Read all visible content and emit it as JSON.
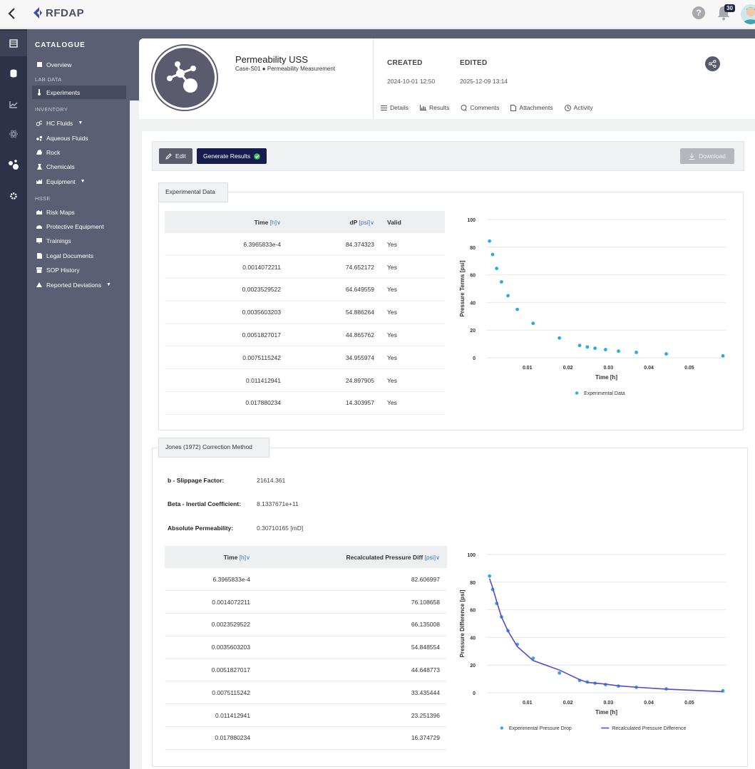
{
  "app": {
    "name": "RFDAP",
    "notifications_count": "30"
  },
  "icons": {
    "back": "chevron-left-icon",
    "help": "question-circle-icon",
    "bell": "bell-icon",
    "share": "share-icon"
  },
  "colors": {
    "sidebar": "#5b5f74",
    "rail": "#2d3249",
    "primary": "#171c4f",
    "series": "#31a8e6",
    "line": "#5a48c9"
  },
  "sidebar": {
    "title": "CATALOGUE",
    "overview": "Overview",
    "lab_data_label": "LAB DATA",
    "experiments": "Experiments",
    "inventory_label": "INVENTORY",
    "hc_fluids": "HC Fluids",
    "aqueous_fluids": "Aqueous Fluids",
    "rock": "Rock",
    "chemicals": "Chemicals",
    "equipment": "Equipment",
    "hsse_label": "HSSE",
    "risk_maps": "Risk Maps",
    "protective_equipment": "Protective Equipment",
    "trainings": "Trainings",
    "legal_documents": "Legal Documents",
    "sop_history": "SOP History",
    "reported_deviations": "Reported Deviations"
  },
  "header": {
    "title": "Permeability USS",
    "subtitle": "Case-S01 ● Permeability Measurement",
    "created_label": "CREATED",
    "created_value": "2024-10-01 12:50",
    "edited_label": "EDITED",
    "edited_value": "2025-12-09 13:14",
    "tabs": {
      "details": "Details",
      "results": "Results",
      "comments": "Comments",
      "attachments": "Attachments",
      "activity": "Activity"
    }
  },
  "toolbar": {
    "edit": "Edit",
    "generate": "Generate Results",
    "download": "Download"
  },
  "experimental": {
    "tab_label": "Experimental Data",
    "col_time": "Time",
    "col_time_unit": "[h]",
    "col_dp": "dP",
    "col_dp_unit": "[psi]",
    "col_valid": "Valid",
    "rows": [
      {
        "time": "6.3965833e-4",
        "dp": "84.374323",
        "valid": "Yes"
      },
      {
        "time": "0.0014072211",
        "dp": "74.652172",
        "valid": "Yes"
      },
      {
        "time": "0.0023529522",
        "dp": "64.649559",
        "valid": "Yes"
      },
      {
        "time": "0.0035603203",
        "dp": "54.886264",
        "valid": "Yes"
      },
      {
        "time": "0.0051827017",
        "dp": "44.865762",
        "valid": "Yes"
      },
      {
        "time": "0.0075115242",
        "dp": "34.955974",
        "valid": "Yes"
      },
      {
        "time": "0.011412941",
        "dp": "24.897905",
        "valid": "Yes"
      },
      {
        "time": "0.017880234",
        "dp": "14.303957",
        "valid": "Yes"
      }
    ]
  },
  "jones": {
    "tab_label": "Jones (1972) Correction Method",
    "b_label": "b - Slippage Factor:",
    "b_value": "21614.361",
    "beta_label": "Beta - Inertial Coefficient:",
    "beta_value": "8.1337671e+11",
    "perm_label": "Absolute Permeability:",
    "perm_value": "0.30710165 [mD]",
    "col_time": "Time",
    "col_time_unit": "[h]",
    "col_recalc": "Recalculated Pressure Diff",
    "col_recalc_unit": "[psi]",
    "rows": [
      {
        "time": "6.3965833e-4",
        "recalc": "82.606997"
      },
      {
        "time": "0.0014072211",
        "recalc": "76.108658"
      },
      {
        "time": "0.0023529522",
        "recalc": "66.135008"
      },
      {
        "time": "0.0035603203",
        "recalc": "54.848554"
      },
      {
        "time": "0.0051827017",
        "recalc": "44.648773"
      },
      {
        "time": "0.0075115242",
        "recalc": "33.435444"
      },
      {
        "time": "0.011412941",
        "recalc": "23.251396"
      },
      {
        "time": "0.017880234",
        "recalc": "16.374729"
      }
    ]
  },
  "chart_data": [
    {
      "type": "scatter",
      "xlabel": "Time [h]",
      "ylabel": "Pressure Terms [psi]",
      "xlim": [
        0,
        0.059
      ],
      "ylim": [
        0,
        100
      ],
      "xticks": [
        0.01,
        0.02,
        0.03,
        0.04,
        0.05
      ],
      "yticks": [
        0,
        20,
        40,
        60,
        80,
        100
      ],
      "grid": true,
      "legend": "bottom",
      "series": [
        {
          "name": "Experimental Data",
          "x": [
            0.00064,
            0.0014,
            0.0024,
            0.0036,
            0.0052,
            0.0075,
            0.0114,
            0.0179,
            0.0229,
            0.0248,
            0.0267,
            0.0293,
            0.0325,
            0.0369,
            0.0443,
            0.0583
          ],
          "y": [
            84.4,
            74.7,
            64.6,
            54.9,
            44.9,
            35.0,
            24.9,
            14.3,
            8.9,
            7.8,
            6.9,
            5.9,
            4.8,
            3.9,
            2.8,
            1.4
          ]
        }
      ]
    },
    {
      "type": "line",
      "xlabel": "Time [h]",
      "ylabel": "Pressure Difference [psi]",
      "xlim": [
        0,
        0.059
      ],
      "ylim": [
        0,
        100
      ],
      "xticks": [
        0.01,
        0.02,
        0.03,
        0.04,
        0.05
      ],
      "yticks": [
        0,
        20,
        40,
        60,
        80,
        100
      ],
      "grid": true,
      "legend": "bottom",
      "series": [
        {
          "name": "Experimental Pressure Drop",
          "kind": "scatter",
          "x": [
            0.00064,
            0.0014,
            0.0024,
            0.0036,
            0.0052,
            0.0075,
            0.0114,
            0.0179,
            0.0229,
            0.0248,
            0.0267,
            0.0293,
            0.0325,
            0.0369,
            0.0443,
            0.0583
          ],
          "y": [
            84.4,
            74.7,
            64.6,
            54.9,
            44.9,
            35.0,
            24.9,
            14.3,
            8.9,
            7.8,
            6.9,
            5.9,
            4.8,
            3.9,
            2.8,
            1.4
          ]
        },
        {
          "name": "Recalculated Pressure Difference",
          "kind": "line",
          "x": [
            0.00064,
            0.0014,
            0.0024,
            0.0036,
            0.0052,
            0.0075,
            0.0114,
            0.0179,
            0.0229,
            0.0248,
            0.0267,
            0.0293,
            0.0325,
            0.0369,
            0.0443,
            0.0583
          ],
          "y": [
            82.6,
            76.1,
            66.1,
            54.8,
            44.6,
            33.4,
            23.3,
            16.4,
            9.5,
            7.5,
            7.0,
            6.2,
            5.0,
            4.0,
            2.6,
            0.8
          ]
        }
      ]
    }
  ]
}
